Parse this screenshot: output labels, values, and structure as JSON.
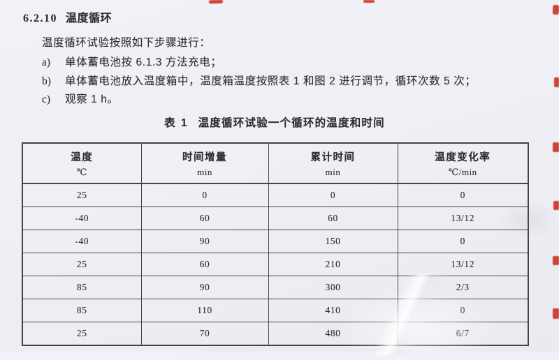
{
  "page": {
    "paper_color": "#edeff4",
    "ink_color": "#2e2d33",
    "table_line_color": "#45434a",
    "scan_mark_color": "#d2382b"
  },
  "heading": {
    "number": "6.2.10",
    "title": "温度循环"
  },
  "intro": "温度循环试验按照如下步骤进行：",
  "steps": [
    {
      "label": "a)",
      "text": "单体蓄电池按 6.1.3 方法充电；"
    },
    {
      "label": "b)",
      "text": "单体蓄电池放入温度箱中，温度箱温度按照表 1 和图 2 进行调节，循环次数 5 次；"
    },
    {
      "label": "c)",
      "text": "观察 1 h。"
    }
  ],
  "table": {
    "caption_label": "表 1",
    "caption_title": "温度循环试验一个循环的温度和时间",
    "columns": [
      {
        "name": "温度",
        "unit": "℃"
      },
      {
        "name": "时间增量",
        "unit": "min"
      },
      {
        "name": "累计时间",
        "unit": "min"
      },
      {
        "name": "温度变化率",
        "unit": "℃/min"
      }
    ],
    "rows": [
      [
        "25",
        "0",
        "0",
        "0"
      ],
      [
        "-40",
        "60",
        "60",
        "13/12"
      ],
      [
        "-40",
        "90",
        "150",
        "0"
      ],
      [
        "25",
        "60",
        "210",
        "13/12"
      ],
      [
        "85",
        "90",
        "300",
        "2/3"
      ],
      [
        "85",
        "110",
        "410",
        "0"
      ],
      [
        "25",
        "70",
        "480",
        "6/7"
      ]
    ]
  }
}
